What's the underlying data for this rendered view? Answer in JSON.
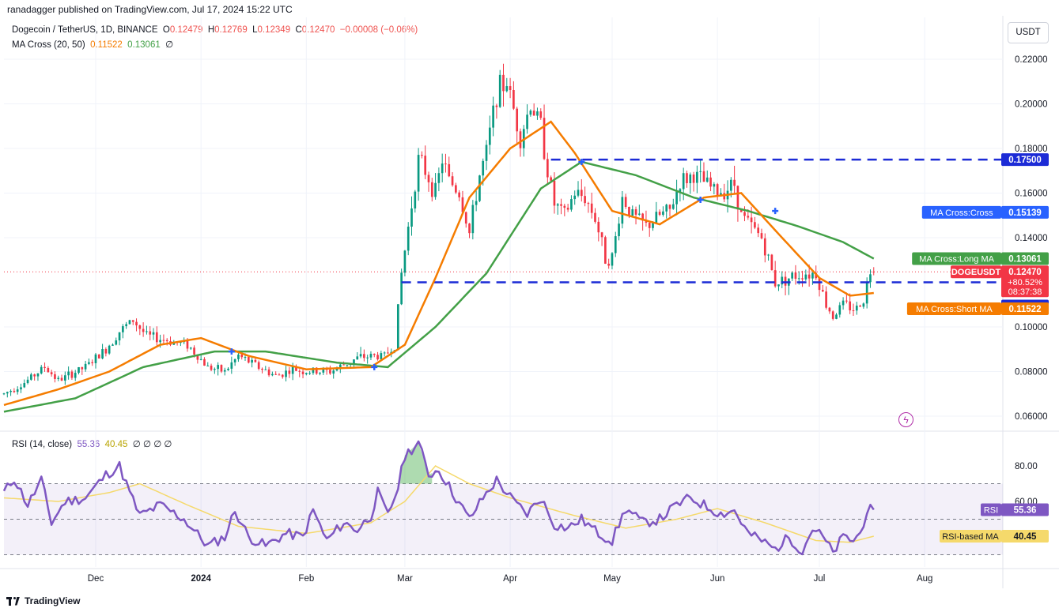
{
  "header": {
    "publisher": "ranadagger published on TradingView.com, Jul 17, 2024 15:22 UTC"
  },
  "legend": {
    "symbol": "Dogecoin / TetherUS, 1D, BINANCE",
    "o_label": "O",
    "o_value": "0.12479",
    "h_label": "H",
    "h_value": "0.12769",
    "l_label": "L",
    "l_value": "0.12349",
    "c_label": "C",
    "c_value": "0.12470",
    "change": "−0.00008 (−0.06%)",
    "ma_label": "MA Cross (20, 50)",
    "ma_short": "0.11522",
    "ma_long": "0.13061",
    "ma_null": "∅"
  },
  "rsi_legend": {
    "label": "RSI (14, close)",
    "rsi": "55.36",
    "rsi_ma": "40.45",
    "nulls": "∅ ∅ ∅ ∅"
  },
  "currency_button": "USDT",
  "footer": {
    "brand": "TradingView"
  },
  "colors": {
    "up": "#089981",
    "down": "#f23645",
    "ma_short": "#f57c00",
    "ma_long": "#43a047",
    "level": "#1c2bd6",
    "rsi": "#7e57c2",
    "rsi_ma": "#f5d96b",
    "cross": "#2962ff"
  },
  "chart_data": [
    {
      "type": "candlestick",
      "symbol": "DOGEUSDT",
      "title": "Dogecoin / TetherUS, 1D, BINANCE",
      "ylim": [
        0.052,
        0.23
      ],
      "y_ticks": [
        "0.22000",
        "0.20000",
        "0.18000",
        "0.16000",
        "0.14000",
        "0.10000",
        "0.08000",
        "0.06000"
      ],
      "y_tick_values": [
        0.22,
        0.2,
        0.18,
        0.16,
        0.14,
        0.1,
        0.08,
        0.06
      ],
      "x_ticks": [
        "Dec",
        "2024",
        "Feb",
        "Mar",
        "Apr",
        "May",
        "Jun",
        "Jul",
        "Aug"
      ],
      "x_tick_dates": [
        "2023-12-01",
        "2024-01-01",
        "2024-02-01",
        "2024-03-01",
        "2024-04-01",
        "2024-05-01",
        "2024-06-01",
        "2024-07-01",
        "2024-08-01"
      ],
      "x_range": [
        "2023-11-04",
        "2024-08-24"
      ],
      "last_date": "2024-07-17",
      "close_anchors": [
        [
          "2023-11-04",
          0.07
        ],
        [
          "2023-11-10",
          0.075
        ],
        [
          "2023-11-16",
          0.082
        ],
        [
          "2023-11-20",
          0.076
        ],
        [
          "2023-11-28",
          0.082
        ],
        [
          "2023-12-04",
          0.09
        ],
        [
          "2023-12-08",
          0.098
        ],
        [
          "2023-12-12",
          0.103
        ],
        [
          "2023-12-16",
          0.096
        ],
        [
          "2023-12-22",
          0.094
        ],
        [
          "2023-12-28",
          0.092
        ],
        [
          "2024-01-03",
          0.082
        ],
        [
          "2024-01-08",
          0.08
        ],
        [
          "2024-01-12",
          0.087
        ],
        [
          "2024-01-18",
          0.082
        ],
        [
          "2024-01-23",
          0.078
        ],
        [
          "2024-01-28",
          0.081
        ],
        [
          "2024-02-01",
          0.08
        ],
        [
          "2024-02-08",
          0.08
        ],
        [
          "2024-02-12",
          0.083
        ],
        [
          "2024-02-16",
          0.086
        ],
        [
          "2024-02-20",
          0.087
        ],
        [
          "2024-02-24",
          0.087
        ],
        [
          "2024-02-27",
          0.092
        ],
        [
          "2024-02-29",
          0.124
        ],
        [
          "2024-03-03",
          0.155
        ],
        [
          "2024-03-05",
          0.175
        ],
        [
          "2024-03-07",
          0.17
        ],
        [
          "2024-03-10",
          0.16
        ],
        [
          "2024-03-12",
          0.175
        ],
        [
          "2024-03-14",
          0.166
        ],
        [
          "2024-03-17",
          0.16
        ],
        [
          "2024-03-20",
          0.142
        ],
        [
          "2024-03-23",
          0.168
        ],
        [
          "2024-03-25",
          0.178
        ],
        [
          "2024-03-28",
          0.205
        ],
        [
          "2024-03-31",
          0.21
        ],
        [
          "2024-04-04",
          0.185
        ],
        [
          "2024-04-07",
          0.2
        ],
        [
          "2024-04-10",
          0.19
        ],
        [
          "2024-04-12",
          0.17
        ],
        [
          "2024-04-14",
          0.155
        ],
        [
          "2024-04-17",
          0.15
        ],
        [
          "2024-04-20",
          0.16
        ],
        [
          "2024-04-23",
          0.158
        ],
        [
          "2024-04-26",
          0.149
        ],
        [
          "2024-04-29",
          0.131
        ],
        [
          "2024-05-01",
          0.131
        ],
        [
          "2024-05-04",
          0.158
        ],
        [
          "2024-05-07",
          0.15
        ],
        [
          "2024-05-11",
          0.145
        ],
        [
          "2024-05-15",
          0.15
        ],
        [
          "2024-05-18",
          0.152
        ],
        [
          "2024-05-21",
          0.165
        ],
        [
          "2024-05-25",
          0.168
        ],
        [
          "2024-05-28",
          0.165
        ],
        [
          "2024-06-01",
          0.16
        ],
        [
          "2024-06-06",
          0.164
        ],
        [
          "2024-06-08",
          0.15
        ],
        [
          "2024-06-11",
          0.145
        ],
        [
          "2024-06-14",
          0.14
        ],
        [
          "2024-06-18",
          0.12
        ],
        [
          "2024-06-22",
          0.122
        ],
        [
          "2024-06-26",
          0.124
        ],
        [
          "2024-06-30",
          0.124
        ],
        [
          "2024-07-03",
          0.11
        ],
        [
          "2024-07-05",
          0.105
        ],
        [
          "2024-07-08",
          0.11
        ],
        [
          "2024-07-12",
          0.108
        ],
        [
          "2024-07-14",
          0.113
        ],
        [
          "2024-07-16",
          0.125
        ],
        [
          "2024-07-17",
          0.1247
        ]
      ],
      "ma_short_anchors": [
        [
          "2023-11-04",
          0.065
        ],
        [
          "2023-11-20",
          0.072
        ],
        [
          "2023-12-05",
          0.08
        ],
        [
          "2023-12-20",
          0.092
        ],
        [
          "2024-01-01",
          0.095
        ],
        [
          "2024-01-15",
          0.087
        ],
        [
          "2024-02-01",
          0.081
        ],
        [
          "2024-02-20",
          0.082
        ],
        [
          "2024-03-01",
          0.092
        ],
        [
          "2024-03-10",
          0.122
        ],
        [
          "2024-03-20",
          0.158
        ],
        [
          "2024-04-01",
          0.18
        ],
        [
          "2024-04-13",
          0.192
        ],
        [
          "2024-04-20",
          0.178
        ],
        [
          "2024-05-01",
          0.152
        ],
        [
          "2024-05-15",
          0.146
        ],
        [
          "2024-05-28",
          0.158
        ],
        [
          "2024-06-08",
          0.16
        ],
        [
          "2024-06-20",
          0.14
        ],
        [
          "2024-07-01",
          0.122
        ],
        [
          "2024-07-10",
          0.114
        ],
        [
          "2024-07-17",
          0.11522
        ]
      ],
      "ma_long_anchors": [
        [
          "2023-11-04",
          0.062
        ],
        [
          "2023-11-25",
          0.068
        ],
        [
          "2023-12-15",
          0.082
        ],
        [
          "2024-01-05",
          0.089
        ],
        [
          "2024-01-20",
          0.089
        ],
        [
          "2024-02-10",
          0.084
        ],
        [
          "2024-02-25",
          0.082
        ],
        [
          "2024-03-10",
          0.1
        ],
        [
          "2024-03-25",
          0.124
        ],
        [
          "2024-04-10",
          0.162
        ],
        [
          "2024-04-22",
          0.174
        ],
        [
          "2024-05-08",
          0.168
        ],
        [
          "2024-05-25",
          0.158
        ],
        [
          "2024-06-10",
          0.152
        ],
        [
          "2024-06-25",
          0.145
        ],
        [
          "2024-07-08",
          0.138
        ],
        [
          "2024-07-17",
          0.13061
        ]
      ],
      "ma_cross_markers": [
        [
          "2024-01-10",
          0.089
        ],
        [
          "2024-02-21",
          0.082
        ],
        [
          "2024-04-22",
          0.174
        ],
        [
          "2024-05-27",
          0.157
        ],
        [
          "2024-06-18",
          0.152
        ]
      ],
      "horizontal_levels": [
        0.175,
        0.12
      ],
      "price_labels": [
        {
          "text": "0.17500",
          "value": 0.175,
          "bg": "#1c2bd6"
        },
        {
          "name": "MA Cross:Cross",
          "text": "0.15139",
          "value": 0.15139,
          "bg": "#2962ff"
        },
        {
          "name": "MA Cross:Long MA",
          "text": "0.13061",
          "value": 0.13061,
          "bg": "#43a047"
        },
        {
          "name": "DOGEUSDT",
          "text": "0.12470",
          "sub": [
            "+80.52%",
            "08:37:38"
          ],
          "value": 0.1247,
          "bg": "#f23645"
        },
        {
          "text": "0.12000",
          "value": 0.12,
          "bg": "#1c2bd6"
        },
        {
          "name": "MA Cross:Short MA",
          "text": "0.11522",
          "value": 0.11522,
          "bg": "#f57c00"
        }
      ]
    },
    {
      "type": "line",
      "title": "RSI (14, close)",
      "ylim": [
        26,
        96
      ],
      "y_ticks": [
        "80.00",
        "60.00"
      ],
      "y_tick_values": [
        80,
        60
      ],
      "band": [
        30,
        70
      ],
      "mid_line": 50,
      "rsi_anchors": [
        [
          "2023-11-04",
          65
        ],
        [
          "2023-11-07",
          73
        ],
        [
          "2023-11-11",
          58
        ],
        [
          "2023-11-15",
          72
        ],
        [
          "2023-11-18",
          48
        ],
        [
          "2023-11-22",
          60
        ],
        [
          "2023-11-28",
          62
        ],
        [
          "2023-12-04",
          75
        ],
        [
          "2023-12-08",
          80
        ],
        [
          "2023-12-11",
          65
        ],
        [
          "2023-12-14",
          52
        ],
        [
          "2023-12-20",
          58
        ],
        [
          "2023-12-27",
          50
        ],
        [
          "2024-01-03",
          35
        ],
        [
          "2024-01-08",
          40
        ],
        [
          "2024-01-11",
          55
        ],
        [
          "2024-01-15",
          40
        ],
        [
          "2024-01-20",
          35
        ],
        [
          "2024-01-26",
          42
        ],
        [
          "2024-01-31",
          40
        ],
        [
          "2024-02-03",
          55
        ],
        [
          "2024-02-07",
          38
        ],
        [
          "2024-02-12",
          48
        ],
        [
          "2024-02-16",
          44
        ],
        [
          "2024-02-20",
          52
        ],
        [
          "2024-02-22",
          65
        ],
        [
          "2024-02-25",
          52
        ],
        [
          "2024-02-28",
          68
        ],
        [
          "2024-03-01",
          86
        ],
        [
          "2024-03-05",
          93
        ],
        [
          "2024-03-08",
          75
        ],
        [
          "2024-03-11",
          78
        ],
        [
          "2024-03-16",
          62
        ],
        [
          "2024-03-20",
          50
        ],
        [
          "2024-03-24",
          62
        ],
        [
          "2024-03-28",
          72
        ],
        [
          "2024-04-02",
          60
        ],
        [
          "2024-04-06",
          53
        ],
        [
          "2024-04-10",
          62
        ],
        [
          "2024-04-14",
          47
        ],
        [
          "2024-04-18",
          45
        ],
        [
          "2024-04-22",
          50
        ],
        [
          "2024-04-27",
          42
        ],
        [
          "2024-05-01",
          38
        ],
        [
          "2024-05-05",
          56
        ],
        [
          "2024-05-10",
          48
        ],
        [
          "2024-05-15",
          50
        ],
        [
          "2024-05-20",
          58
        ],
        [
          "2024-05-24",
          62
        ],
        [
          "2024-05-28",
          58
        ],
        [
          "2024-06-02",
          53
        ],
        [
          "2024-06-06",
          55
        ],
        [
          "2024-06-10",
          42
        ],
        [
          "2024-06-14",
          38
        ],
        [
          "2024-06-18",
          33
        ],
        [
          "2024-06-22",
          40
        ],
        [
          "2024-06-26",
          32
        ],
        [
          "2024-06-29",
          45
        ],
        [
          "2024-07-02",
          40
        ],
        [
          "2024-07-05",
          31
        ],
        [
          "2024-07-08",
          40
        ],
        [
          "2024-07-11",
          38
        ],
        [
          "2024-07-13",
          42
        ],
        [
          "2024-07-15",
          55
        ],
        [
          "2024-07-17",
          55.36
        ]
      ],
      "rsi_ma_anchors": [
        [
          "2023-11-04",
          62
        ],
        [
          "2023-11-20",
          60
        ],
        [
          "2023-12-05",
          65
        ],
        [
          "2023-12-14",
          70
        ],
        [
          "2023-12-28",
          58
        ],
        [
          "2024-01-12",
          46
        ],
        [
          "2024-02-01",
          42
        ],
        [
          "2024-02-20",
          48
        ],
        [
          "2024-03-01",
          60
        ],
        [
          "2024-03-10",
          80
        ],
        [
          "2024-03-20",
          70
        ],
        [
          "2024-04-01",
          62
        ],
        [
          "2024-04-20",
          52
        ],
        [
          "2024-05-05",
          45
        ],
        [
          "2024-05-20",
          50
        ],
        [
          "2024-06-01",
          56
        ],
        [
          "2024-06-15",
          48
        ],
        [
          "2024-06-30",
          38
        ],
        [
          "2024-07-10",
          37
        ],
        [
          "2024-07-17",
          40.45
        ]
      ],
      "price_labels": [
        {
          "name": "RSI",
          "text": "55.36",
          "value": 55.36,
          "bg": "#7e57c2"
        },
        {
          "name": "RSI-based MA",
          "text": "40.45",
          "value": 40.45,
          "bg": "#f5d96b"
        }
      ]
    }
  ]
}
